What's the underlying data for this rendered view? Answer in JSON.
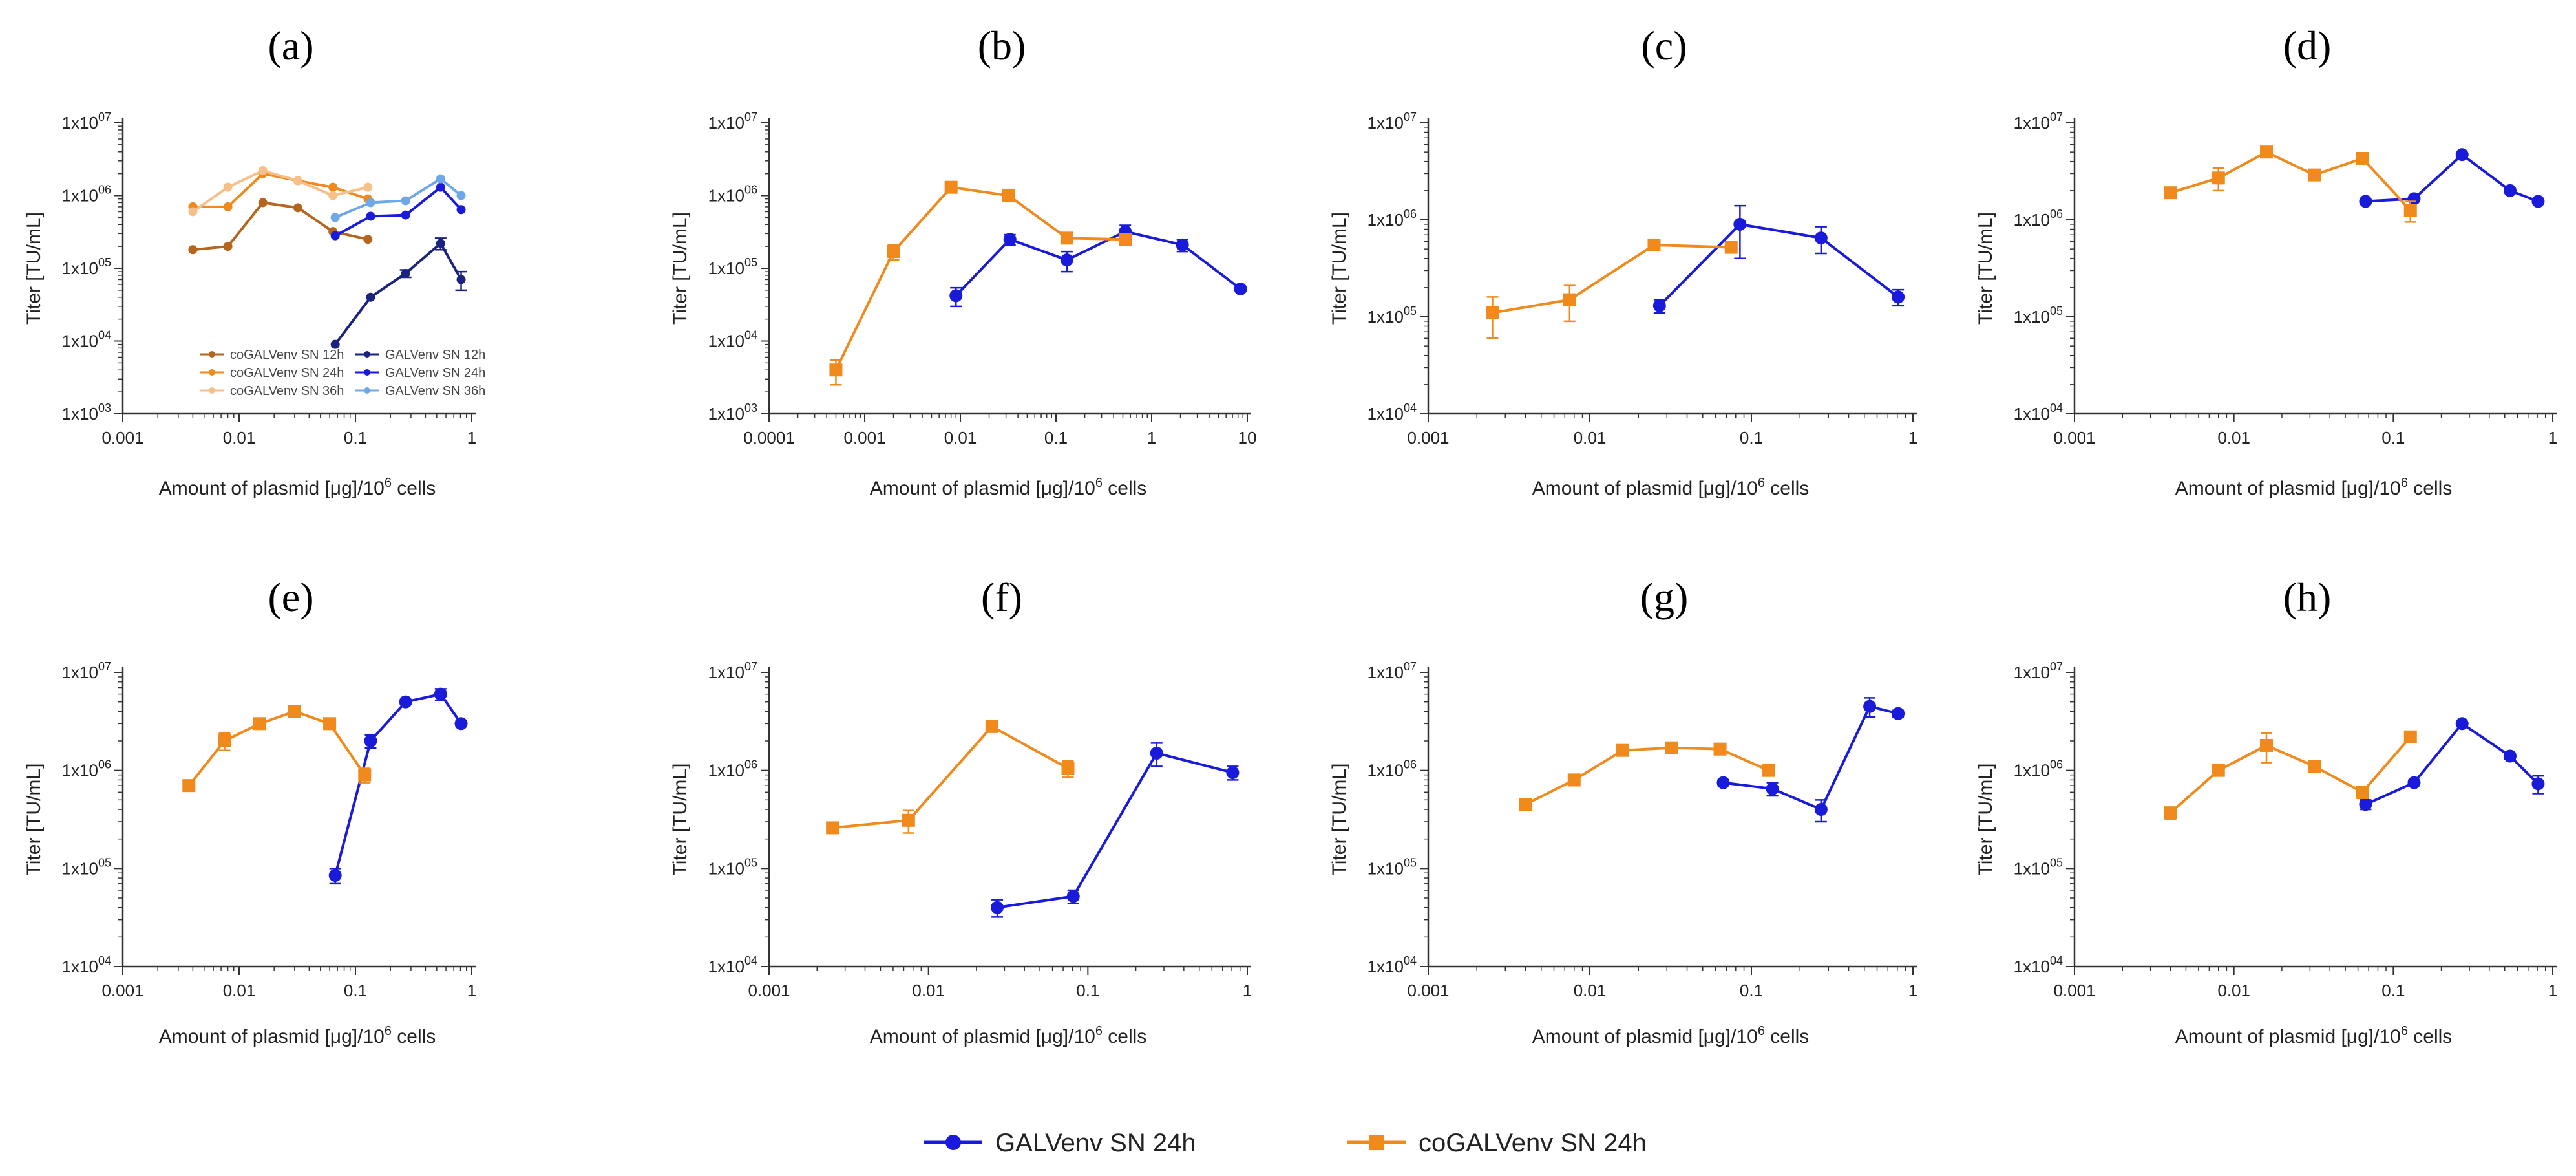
{
  "figure": {
    "shared_legend": [
      {
        "label": "GALVenv SN 24h",
        "color": "#1a1adb",
        "marker": "circle"
      },
      {
        "label": "coGALVenv SN 24h",
        "color": "#f08a1c",
        "marker": "square"
      }
    ]
  },
  "chart_data": [
    {
      "panel": "(a)",
      "type": "line",
      "xscale": "log",
      "yscale": "log",
      "xlabel": "Amount of plasmid [μg]/10^6 cells",
      "ylabel": "Titer [TU/mL]",
      "xlim": [
        0.001,
        1
      ],
      "ylim": [
        1000,
        10000000
      ],
      "xticks": [
        {
          "v": 0.001,
          "label": "0.001"
        },
        {
          "v": 0.01,
          "label": "0.01"
        },
        {
          "v": 0.1,
          "label": "0.1"
        },
        {
          "v": 1,
          "label": "1"
        }
      ],
      "yticks": [
        {
          "v": 1000,
          "base": "1x10",
          "exp": "03"
        },
        {
          "v": 10000,
          "base": "1x10",
          "exp": "04"
        },
        {
          "v": 100000,
          "base": "1x10",
          "exp": "05"
        },
        {
          "v": 1000000,
          "base": "1x10",
          "exp": "06"
        },
        {
          "v": 10000000,
          "base": "1x10",
          "exp": "07"
        }
      ],
      "legend": {
        "placement": "inside-bottom",
        "entries": [
          {
            "label": "coGALVenv SN 12h",
            "color": "#b5651d"
          },
          {
            "label": "coGALVenv SN 24h",
            "color": "#f08a1c"
          },
          {
            "label": "coGALVenv SN 36h",
            "color": "#f7c08a"
          },
          {
            "label": "GALVenv SN 12h",
            "color": "#1a237e"
          },
          {
            "label": "GALVenv SN 24h",
            "color": "#1a1adb"
          },
          {
            "label": "GALVenv SN 36h",
            "color": "#6fa8e8"
          }
        ]
      },
      "series": [
        {
          "name": "coGALVenv SN 12h",
          "color": "#b5651d",
          "marker": "circle",
          "x": [
            0.004,
            0.008,
            0.016,
            0.032,
            0.064,
            0.128
          ],
          "y": [
            180000,
            200000,
            800000,
            680000,
            320000,
            250000
          ]
        },
        {
          "name": "coGALVenv SN 24h",
          "color": "#f08a1c",
          "marker": "circle",
          "x": [
            0.004,
            0.008,
            0.016,
            0.032,
            0.064,
            0.128
          ],
          "y": [
            700000,
            700000,
            2000000,
            1600000,
            1300000,
            900000
          ]
        },
        {
          "name": "coGALVenv SN 36h",
          "color": "#f7c08a",
          "marker": "circle",
          "x": [
            0.004,
            0.008,
            0.016,
            0.032,
            0.064,
            0.128
          ],
          "y": [
            600000,
            1300000,
            2200000,
            1600000,
            1000000,
            1300000
          ]
        },
        {
          "name": "GALVenv SN 12h",
          "color": "#1a237e",
          "marker": "circle",
          "x": [
            0.067,
            0.135,
            0.27,
            0.54,
            0.81
          ],
          "y": [
            9000,
            40000,
            85000,
            220000,
            70000
          ],
          "err": [
            0,
            0,
            10000,
            40000,
            20000
          ]
        },
        {
          "name": "GALVenv SN 24h",
          "color": "#1a1adb",
          "marker": "circle",
          "x": [
            0.067,
            0.135,
            0.27,
            0.54,
            0.81
          ],
          "y": [
            280000,
            520000,
            540000,
            1300000,
            640000
          ]
        },
        {
          "name": "GALVenv SN 36h",
          "color": "#6fa8e8",
          "marker": "circle",
          "x": [
            0.067,
            0.135,
            0.27,
            0.54,
            0.81
          ],
          "y": [
            500000,
            800000,
            850000,
            1700000,
            1000000
          ]
        }
      ]
    },
    {
      "panel": "(b)",
      "type": "line",
      "xscale": "log",
      "yscale": "log",
      "xlabel": "Amount of plasmid [μg]/10^6 cells",
      "ylabel": "Titer [TU/mL]",
      "xlim": [
        0.0001,
        10
      ],
      "ylim": [
        1000,
        10000000
      ],
      "xticks": [
        {
          "v": 0.0001,
          "label": "0.0001"
        },
        {
          "v": 0.001,
          "label": "0.001"
        },
        {
          "v": 0.01,
          "label": "0.01"
        },
        {
          "v": 0.1,
          "label": "0.1"
        },
        {
          "v": 1,
          "label": "1"
        },
        {
          "v": 10,
          "label": "10"
        }
      ],
      "yticks": [
        {
          "v": 1000,
          "base": "1x10",
          "exp": "03"
        },
        {
          "v": 10000,
          "base": "1x10",
          "exp": "04"
        },
        {
          "v": 100000,
          "base": "1x10",
          "exp": "05"
        },
        {
          "v": 1000000,
          "base": "1x10",
          "exp": "06"
        },
        {
          "v": 10000000,
          "base": "1x10",
          "exp": "07"
        }
      ],
      "series": [
        {
          "name": "GALVenv SN 24h",
          "color": "#1a1adb",
          "marker": "circle",
          "x": [
            0.009,
            0.033,
            0.13,
            0.53,
            2.1,
            8.5
          ],
          "y": [
            42000,
            250000,
            130000,
            320000,
            210000,
            52000
          ],
          "err": [
            12000,
            40000,
            40000,
            70000,
            40000,
            0
          ]
        },
        {
          "name": "coGALVenv SN 24h",
          "color": "#f08a1c",
          "marker": "square",
          "x": [
            0.0005,
            0.002,
            0.008,
            0.032,
            0.13,
            0.53
          ],
          "y": [
            4000,
            170000,
            1300000,
            1000000,
            260000,
            250000
          ],
          "err": [
            1500,
            40000,
            80000,
            80000,
            30000,
            30000
          ]
        }
      ]
    },
    {
      "panel": "(c)",
      "type": "line",
      "xscale": "log",
      "yscale": "log",
      "xlabel": "Amount of plasmid [μg]/10^6 cells",
      "ylabel": "Titer [TU/mL]",
      "xlim": [
        0.001,
        1
      ],
      "ylim": [
        10000,
        10000000
      ],
      "xticks": [
        {
          "v": 0.001,
          "label": "0.001"
        },
        {
          "v": 0.01,
          "label": "0.01"
        },
        {
          "v": 0.1,
          "label": "0.1"
        },
        {
          "v": 1,
          "label": "1"
        }
      ],
      "yticks": [
        {
          "v": 10000,
          "base": "1x10",
          "exp": "04"
        },
        {
          "v": 100000,
          "base": "1x10",
          "exp": "05"
        },
        {
          "v": 1000000,
          "base": "1x10",
          "exp": "06"
        },
        {
          "v": 10000000,
          "base": "1x10",
          "exp": "07"
        }
      ],
      "series": [
        {
          "name": "GALVenv SN 24h",
          "color": "#1a1adb",
          "marker": "circle",
          "x": [
            0.027,
            0.085,
            0.27,
            0.81
          ],
          "y": [
            130000,
            900000,
            650000,
            160000
          ],
          "err": [
            20000,
            500000,
            200000,
            30000
          ]
        },
        {
          "name": "coGALVenv SN 24h",
          "color": "#f08a1c",
          "marker": "square",
          "x": [
            0.0025,
            0.0075,
            0.025,
            0.075
          ],
          "y": [
            110000,
            150000,
            550000,
            520000
          ],
          "err": [
            50000,
            60000,
            40000,
            60000
          ]
        }
      ]
    },
    {
      "panel": "(d)",
      "type": "line",
      "xscale": "log",
      "yscale": "log",
      "xlabel": "Amount of plasmid [μg]/10^6 cells",
      "ylabel": "Titer [TU/mL]",
      "xlim": [
        0.001,
        1
      ],
      "ylim": [
        10000,
        10000000
      ],
      "xticks": [
        {
          "v": 0.001,
          "label": "0.001"
        },
        {
          "v": 0.01,
          "label": "0.01"
        },
        {
          "v": 0.1,
          "label": "0.1"
        },
        {
          "v": 1,
          "label": "1"
        }
      ],
      "yticks": [
        {
          "v": 10000,
          "base": "1x10",
          "exp": "04"
        },
        {
          "v": 100000,
          "base": "1x10",
          "exp": "05"
        },
        {
          "v": 1000000,
          "base": "1x10",
          "exp": "06"
        },
        {
          "v": 10000000,
          "base": "1x10",
          "exp": "07"
        }
      ],
      "series": [
        {
          "name": "GALVenv SN 24h",
          "color": "#1a1adb",
          "marker": "circle",
          "x": [
            0.067,
            0.135,
            0.27,
            0.54,
            0.81
          ],
          "y": [
            1550000,
            1650000,
            4700000,
            2000000,
            1550000
          ]
        },
        {
          "name": "coGALVenv SN 24h",
          "color": "#f08a1c",
          "marker": "square",
          "x": [
            0.004,
            0.008,
            0.016,
            0.032,
            0.064,
            0.128
          ],
          "y": [
            1900000,
            2700000,
            5000000,
            2900000,
            4300000,
            1250000
          ],
          "err": [
            150000,
            700000,
            400000,
            200000,
            500000,
            300000
          ]
        }
      ]
    },
    {
      "panel": "(e)",
      "type": "line",
      "xscale": "log",
      "yscale": "log",
      "xlabel": "Amount of plasmid [μg]/10^6 cells",
      "ylabel": "Titer [TU/mL]",
      "xlim": [
        0.001,
        1
      ],
      "ylim": [
        10000,
        10000000
      ],
      "xticks": [
        {
          "v": 0.001,
          "label": "0.001"
        },
        {
          "v": 0.01,
          "label": "0.01"
        },
        {
          "v": 0.1,
          "label": "0.1"
        },
        {
          "v": 1,
          "label": "1"
        }
      ],
      "yticks": [
        {
          "v": 10000,
          "base": "1x10",
          "exp": "04"
        },
        {
          "v": 100000,
          "base": "1x10",
          "exp": "05"
        },
        {
          "v": 1000000,
          "base": "1x10",
          "exp": "06"
        },
        {
          "v": 10000000,
          "base": "1x10",
          "exp": "07"
        }
      ],
      "series": [
        {
          "name": "GALVenv SN 24h",
          "color": "#1a1adb",
          "marker": "circle",
          "x": [
            0.067,
            0.135,
            0.27,
            0.54,
            0.81
          ],
          "y": [
            85000,
            2000000,
            5000000,
            6000000,
            3000000
          ],
          "err": [
            15000,
            300000,
            300000,
            800000,
            200000
          ]
        },
        {
          "name": "coGALVenv SN 24h",
          "color": "#f08a1c",
          "marker": "square",
          "x": [
            0.0037,
            0.0075,
            0.015,
            0.03,
            0.06,
            0.12
          ],
          "y": [
            700000,
            2000000,
            3000000,
            4000000,
            3000000,
            900000
          ],
          "err": [
            50000,
            400000,
            200000,
            200000,
            200000,
            150000
          ]
        }
      ]
    },
    {
      "panel": "(f)",
      "type": "line",
      "xscale": "log",
      "yscale": "log",
      "xlabel": "Amount of plasmid [μg]/10^6 cells",
      "ylabel": "Titer [TU/mL]",
      "xlim": [
        0.001,
        1
      ],
      "ylim": [
        10000,
        10000000
      ],
      "xticks": [
        {
          "v": 0.001,
          "label": "0.001"
        },
        {
          "v": 0.01,
          "label": "0.01"
        },
        {
          "v": 0.1,
          "label": "0.1"
        },
        {
          "v": 1,
          "label": "1"
        }
      ],
      "yticks": [
        {
          "v": 10000,
          "base": "1x10",
          "exp": "04"
        },
        {
          "v": 100000,
          "base": "1x10",
          "exp": "05"
        },
        {
          "v": 1000000,
          "base": "1x10",
          "exp": "06"
        },
        {
          "v": 10000000,
          "base": "1x10",
          "exp": "07"
        }
      ],
      "series": [
        {
          "name": "GALVenv SN 24h",
          "color": "#1a1adb",
          "marker": "circle",
          "x": [
            0.027,
            0.081,
            0.27,
            0.81
          ],
          "y": [
            40000,
            52000,
            1500000,
            950000
          ],
          "err": [
            8000,
            8000,
            400000,
            150000
          ]
        },
        {
          "name": "coGALVenv SN 24h",
          "color": "#f08a1c",
          "marker": "square",
          "x": [
            0.0025,
            0.0075,
            0.025,
            0.075
          ],
          "y": [
            260000,
            310000,
            2800000,
            1050000
          ],
          "err": [
            30000,
            80000,
            200000,
            200000
          ]
        }
      ]
    },
    {
      "panel": "(g)",
      "type": "line",
      "xscale": "log",
      "yscale": "log",
      "xlabel": "Amount of plasmid [μg]/10^6 cells",
      "ylabel": "Titer [TU/mL]",
      "xlim": [
        0.001,
        1
      ],
      "ylim": [
        10000,
        10000000
      ],
      "xticks": [
        {
          "v": 0.001,
          "label": "0.001"
        },
        {
          "v": 0.01,
          "label": "0.01"
        },
        {
          "v": 0.1,
          "label": "0.1"
        },
        {
          "v": 1,
          "label": "1"
        }
      ],
      "yticks": [
        {
          "v": 10000,
          "base": "1x10",
          "exp": "04"
        },
        {
          "v": 100000,
          "base": "1x10",
          "exp": "05"
        },
        {
          "v": 1000000,
          "base": "1x10",
          "exp": "06"
        },
        {
          "v": 10000000,
          "base": "1x10",
          "exp": "07"
        }
      ],
      "series": [
        {
          "name": "GALVenv SN 24h",
          "color": "#1a1adb",
          "marker": "circle",
          "x": [
            0.067,
            0.135,
            0.27,
            0.54,
            0.81
          ],
          "y": [
            750000,
            650000,
            400000,
            4500000,
            3800000
          ],
          "err": [
            50000,
            100000,
            100000,
            1000000,
            300000
          ]
        },
        {
          "name": "coGALVenv SN 24h",
          "color": "#f08a1c",
          "marker": "square",
          "x": [
            0.004,
            0.008,
            0.016,
            0.032,
            0.064,
            0.128
          ],
          "y": [
            450000,
            800000,
            1600000,
            1700000,
            1650000,
            1000000
          ],
          "err": [
            40000,
            100000,
            100000,
            100000,
            100000,
            100000
          ]
        }
      ]
    },
    {
      "panel": "(h)",
      "type": "line",
      "xscale": "log",
      "yscale": "log",
      "xlabel": "Amount of plasmid [μg]/10^6 cells",
      "ylabel": "Titer [TU/mL]",
      "xlim": [
        0.001,
        1
      ],
      "ylim": [
        10000,
        10000000
      ],
      "xticks": [
        {
          "v": 0.001,
          "label": "0.001"
        },
        {
          "v": 0.01,
          "label": "0.01"
        },
        {
          "v": 0.1,
          "label": "0.1"
        },
        {
          "v": 1,
          "label": "1"
        }
      ],
      "yticks": [
        {
          "v": 10000,
          "base": "1x10",
          "exp": "04"
        },
        {
          "v": 100000,
          "base": "1x10",
          "exp": "05"
        },
        {
          "v": 1000000,
          "base": "1x10",
          "exp": "06"
        },
        {
          "v": 10000000,
          "base": "1x10",
          "exp": "07"
        }
      ],
      "series": [
        {
          "name": "GALVenv SN 24h",
          "color": "#1a1adb",
          "marker": "circle",
          "x": [
            0.067,
            0.135,
            0.27,
            0.54,
            0.81
          ],
          "y": [
            450000,
            750000,
            3000000,
            1400000,
            730000
          ],
          "err": [
            50000,
            50000,
            100000,
            100000,
            150000
          ]
        },
        {
          "name": "coGALVenv SN 24h",
          "color": "#f08a1c",
          "marker": "square",
          "x": [
            0.004,
            0.008,
            0.016,
            0.032,
            0.064,
            0.128
          ],
          "y": [
            370000,
            1000000,
            1800000,
            1100000,
            600000,
            2200000
          ],
          "err": [
            50000,
            60000,
            600000,
            80000,
            80000,
            150000
          ]
        }
      ]
    }
  ]
}
